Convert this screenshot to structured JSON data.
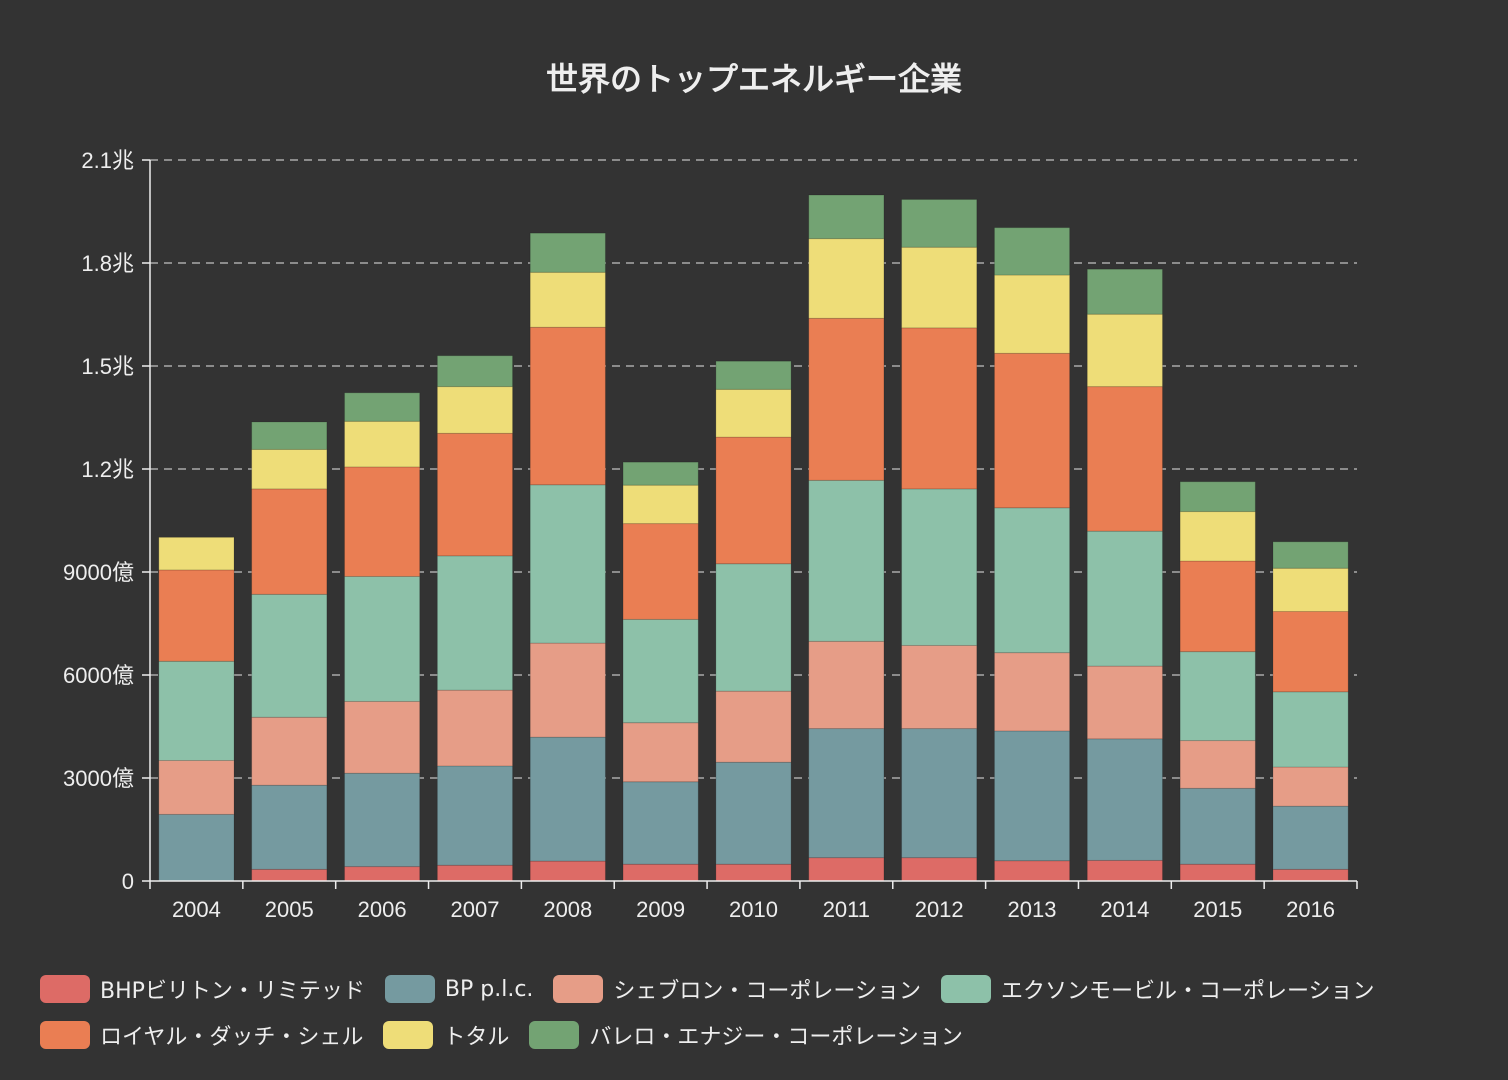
{
  "chart_data": {
    "type": "bar",
    "stacked": true,
    "title": "世界のトップエネルギー企業",
    "xlabel": "",
    "ylabel": "",
    "categories": [
      "2004",
      "2005",
      "2006",
      "2007",
      "2008",
      "2009",
      "2010",
      "2011",
      "2012",
      "2013",
      "2014",
      "2015",
      "2016"
    ],
    "ylim": [
      0,
      2100000000000
    ],
    "yticks": [
      {
        "value": 0,
        "label": "0"
      },
      {
        "value": 300000000000,
        "label": "3000億"
      },
      {
        "value": 600000000000,
        "label": "6000億"
      },
      {
        "value": 900000000000,
        "label": "9000億"
      },
      {
        "value": 1200000000000,
        "label": "1.2兆"
      },
      {
        "value": 1500000000000,
        "label": "1.5兆"
      },
      {
        "value": 1800000000000,
        "label": "1.8兆"
      },
      {
        "value": 2100000000000,
        "label": "2.1兆"
      }
    ],
    "grid": "horizontal-dashed",
    "legend_position": "bottom",
    "value_unit": "億",
    "series": [
      {
        "name": "BHPビリトン・リミテッド",
        "color": "#dd6b66",
        "values": [
          0,
          340,
          420,
          460,
          580,
          490,
          490,
          680,
          680,
          590,
          600,
          490,
          340
        ]
      },
      {
        "name": "BP p.l.c.",
        "color": "#759aa0",
        "values": [
          1940,
          2450,
          2720,
          2890,
          3610,
          2400,
          2970,
          3760,
          3760,
          3780,
          3540,
          2210,
          1840
        ]
      },
      {
        "name": "シェブロン・コーポレーション",
        "color": "#e69d87",
        "values": [
          1570,
          1980,
          2090,
          2210,
          2740,
          1720,
          2070,
          2540,
          2420,
          2280,
          2120,
          1390,
          1140
        ]
      },
      {
        "name": "エクソンモービル・コーポレーション",
        "color": "#8dc1a9",
        "values": [
          2890,
          3580,
          3640,
          3910,
          4610,
          3010,
          3710,
          4690,
          4560,
          4220,
          3930,
          2590,
          2190
        ]
      },
      {
        "name": "ロイヤル・ダッチ・シェル",
        "color": "#ea7e53",
        "values": [
          2660,
          3070,
          3190,
          3570,
          4590,
          2790,
          3690,
          4720,
          4690,
          4500,
          4210,
          2640,
          2340
        ]
      },
      {
        "name": "トタル",
        "color": "#eedd78",
        "values": [
          950,
          1150,
          1330,
          1360,
          1600,
          1120,
          1390,
          2320,
          2350,
          2280,
          2110,
          1440,
          1260
        ]
      },
      {
        "name": "バレロ・エナジー・コーポレーション",
        "color": "#73a373",
        "values": [
          0,
          800,
          830,
          900,
          1140,
          670,
          820,
          1270,
          1390,
          1380,
          1310,
          870,
          770
        ]
      }
    ]
  },
  "theme": {
    "background": "#333333",
    "text": "#eeeeee",
    "axis": "#eeeeee",
    "gridline": "#aaaaaa"
  }
}
